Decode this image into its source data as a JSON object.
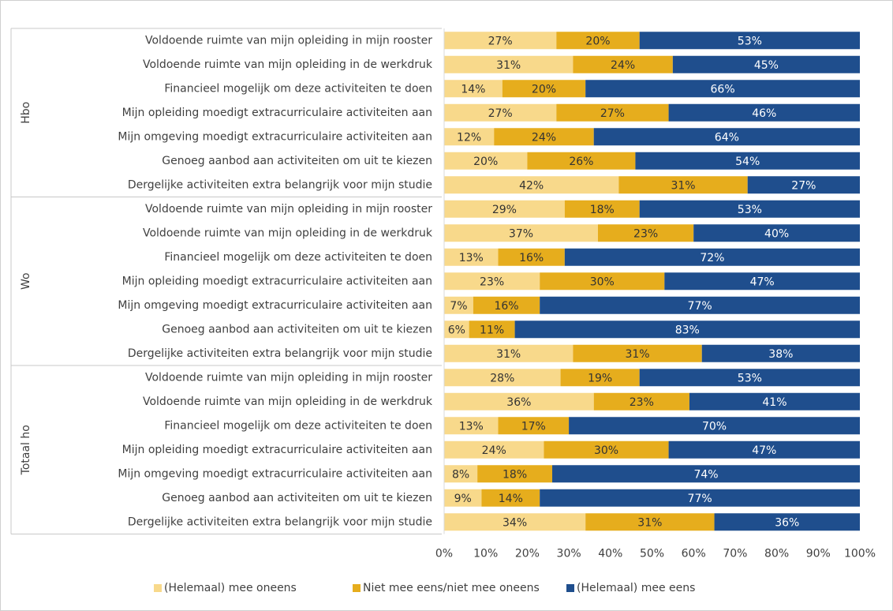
{
  "chart_data": {
    "type": "bar",
    "orientation": "horizontal",
    "stacked": true,
    "groups": [
      "Hbo",
      "Wo",
      "Totaal ho"
    ],
    "categories": [
      "Voldoende ruimte van mijn opleiding in mijn rooster",
      "Voldoende ruimte van mijn opleiding in de werkdruk",
      "Financieel mogelijk om deze activiteiten te doen",
      "Mijn opleiding moedigt extracurriculaire activiteiten aan",
      "Mijn omgeving moedigt extracurriculaire activiteiten aan",
      "Genoeg aanbod aan activiteiten om uit te kiezen",
      "Dergelijke activiteiten extra belangrijk voor mijn studie",
      "Voldoende ruimte van mijn opleiding in mijn rooster",
      "Voldoende ruimte van mijn opleiding in de werkdruk",
      "Financieel mogelijk om deze activiteiten te doen",
      "Mijn opleiding moedigt extracurriculaire activiteiten aan",
      "Mijn omgeving moedigt extracurriculaire activiteiten aan",
      "Genoeg aanbod aan activiteiten om uit te kiezen",
      "Dergelijke activiteiten extra belangrijk voor mijn studie",
      "Voldoende ruimte van mijn opleiding in mijn rooster",
      "Voldoende ruimte van mijn opleiding in de werkdruk",
      "Financieel mogelijk om deze activiteiten te doen",
      "Mijn opleiding moedigt extracurriculaire activiteiten aan",
      "Mijn omgeving moedigt extracurriculaire activiteiten aan",
      "Genoeg aanbod aan activiteiten om uit te kiezen",
      "Dergelijke activiteiten extra belangrijk voor mijn studie"
    ],
    "series": [
      {
        "name": "(Helemaal) mee oneens",
        "color": "#f8d98b",
        "label_color": "#333333",
        "values": [
          27,
          31,
          14,
          27,
          12,
          20,
          42,
          29,
          37,
          13,
          23,
          7,
          6,
          31,
          28,
          36,
          13,
          24,
          8,
          9,
          34
        ],
        "value_labels": [
          "27%",
          "31%",
          "14%",
          "27%",
          "12%",
          "20%",
          "42%",
          "29%",
          "37%",
          "13%",
          "23%",
          "7%",
          "6%",
          "31%",
          "28%",
          "36%",
          "13%",
          "24%",
          "8%",
          "9%",
          "34%"
        ]
      },
      {
        "name": "Niet mee eens/niet mee oneens",
        "color": "#e6ad1d",
        "label_color": "#333333",
        "values": [
          20,
          24,
          20,
          27,
          24,
          26,
          31,
          18,
          23,
          16,
          30,
          16,
          11,
          31,
          19,
          23,
          17,
          30,
          18,
          14,
          31
        ],
        "value_labels": [
          "20%",
          "24%",
          "20%",
          "27%",
          "24%",
          "26%",
          "31%",
          "18%",
          "23%",
          "16%",
          "30%",
          "16%",
          "11%",
          "31%",
          "19%",
          "23%",
          "17%",
          "30%",
          "18%",
          "14%",
          "31%"
        ]
      },
      {
        "name": "(Helemaal) mee eens",
        "color": "#1f4e8d",
        "label_color": "#ffffff",
        "values": [
          53,
          45,
          66,
          46,
          64,
          54,
          27,
          53,
          40,
          72,
          47,
          77,
          83,
          38,
          53,
          41,
          70,
          47,
          74,
          77,
          36
        ],
        "value_labels": [
          "53%",
          "45%",
          "66%",
          "46%",
          "64%",
          "54%",
          "27%",
          "53%",
          "40%",
          "72%",
          "47%",
          "77%",
          "83%",
          "38%",
          "53%",
          "41%",
          "70%",
          "47%",
          "74%",
          "77%",
          "36%"
        ]
      }
    ],
    "xlim": [
      0,
      100
    ],
    "xticks": [
      {
        "value": 0,
        "label": "0%"
      },
      {
        "value": 10,
        "label": "10%"
      },
      {
        "value": 20,
        "label": "20%"
      },
      {
        "value": 30,
        "label": "30%"
      },
      {
        "value": 40,
        "label": "40%"
      },
      {
        "value": 50,
        "label": "50%"
      },
      {
        "value": 60,
        "label": "60%"
      },
      {
        "value": 70,
        "label": "70%"
      },
      {
        "value": 80,
        "label": "80%"
      },
      {
        "value": 90,
        "label": "90%"
      },
      {
        "value": 100,
        "label": "100%"
      }
    ],
    "legend": "bottom"
  }
}
